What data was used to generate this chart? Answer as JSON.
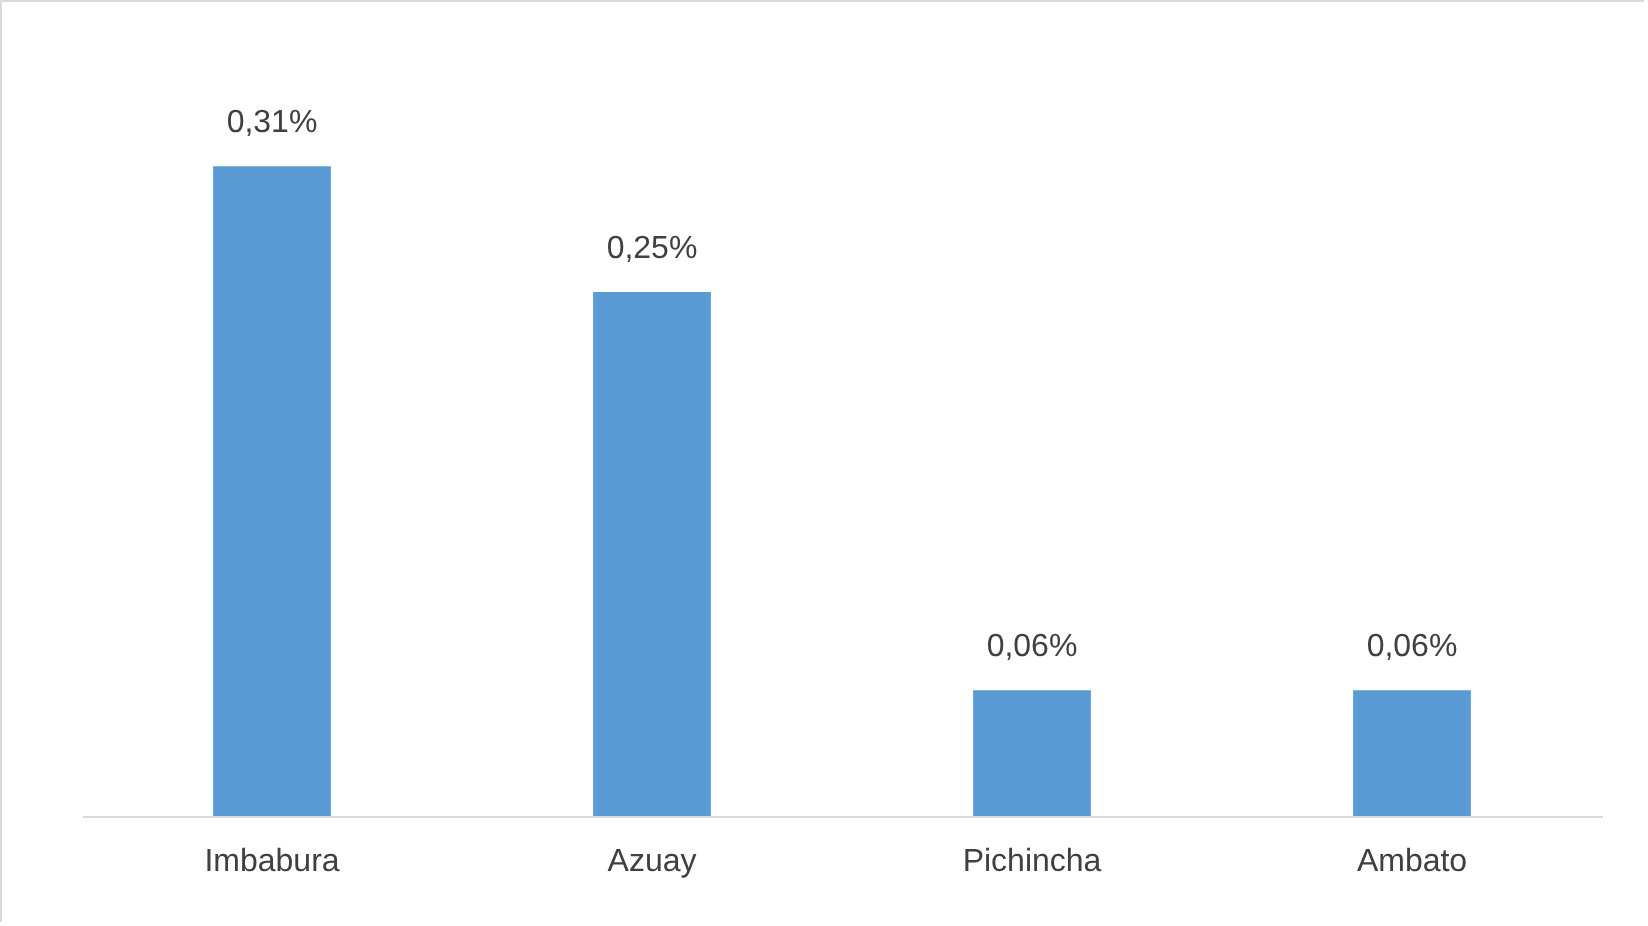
{
  "chart_data": {
    "type": "bar",
    "categories": [
      "Imbabura",
      "Azuay",
      "Pichincha",
      "Ambato"
    ],
    "values": [
      0.31,
      0.25,
      0.06,
      0.06
    ],
    "value_labels": [
      "0,31%",
      "0,25%",
      "0,06%",
      "0,06%"
    ],
    "color": "#5b9bd5"
  }
}
